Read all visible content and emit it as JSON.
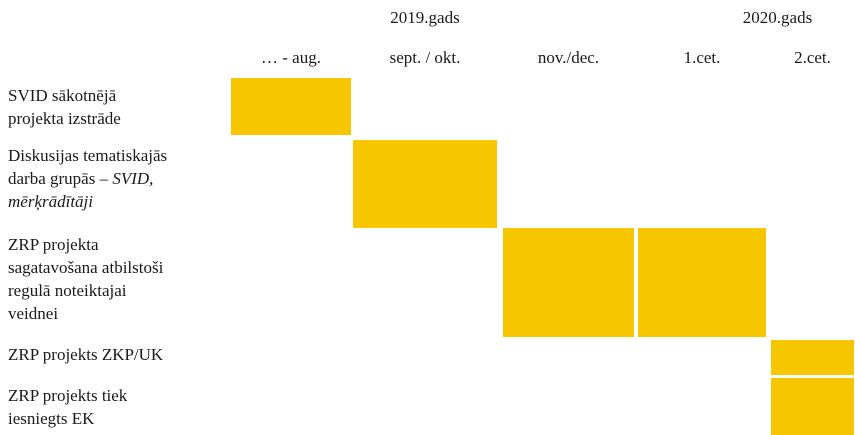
{
  "header": {
    "years": [
      "2019.gads",
      "2020.gads"
    ],
    "periods": [
      "… - aug.",
      "sept. / okt.",
      "nov./dec.",
      "1.cet.",
      "2.cet."
    ]
  },
  "rows": [
    {
      "lines": [
        "SVID sākotnējā",
        "projekta izstrāde"
      ],
      "filled": [
        true,
        false,
        false,
        false,
        false
      ]
    },
    {
      "lines": [
        "Diskusijas tematiskajās",
        [
          "darba grupās – ",
          {
            "text": "SVID,",
            "italic": true
          }
        ],
        [
          {
            "text": "mērķrādītāji",
            "italic": true
          }
        ]
      ],
      "filled": [
        false,
        true,
        false,
        false,
        false
      ]
    },
    {
      "lines": [
        "ZRP projekta",
        "sagatavošana atbilstoši",
        "regulā noteiktajai",
        "veidnei"
      ],
      "filled": [
        false,
        false,
        true,
        true,
        false
      ]
    },
    {
      "lines": [
        "ZRP projekts ZKP/UK"
      ],
      "filled": [
        false,
        false,
        false,
        false,
        true
      ]
    },
    {
      "lines": [
        "ZRP projekts tiek",
        "iesniegts EK"
      ],
      "filled": [
        false,
        false,
        false,
        false,
        true
      ]
    }
  ]
}
